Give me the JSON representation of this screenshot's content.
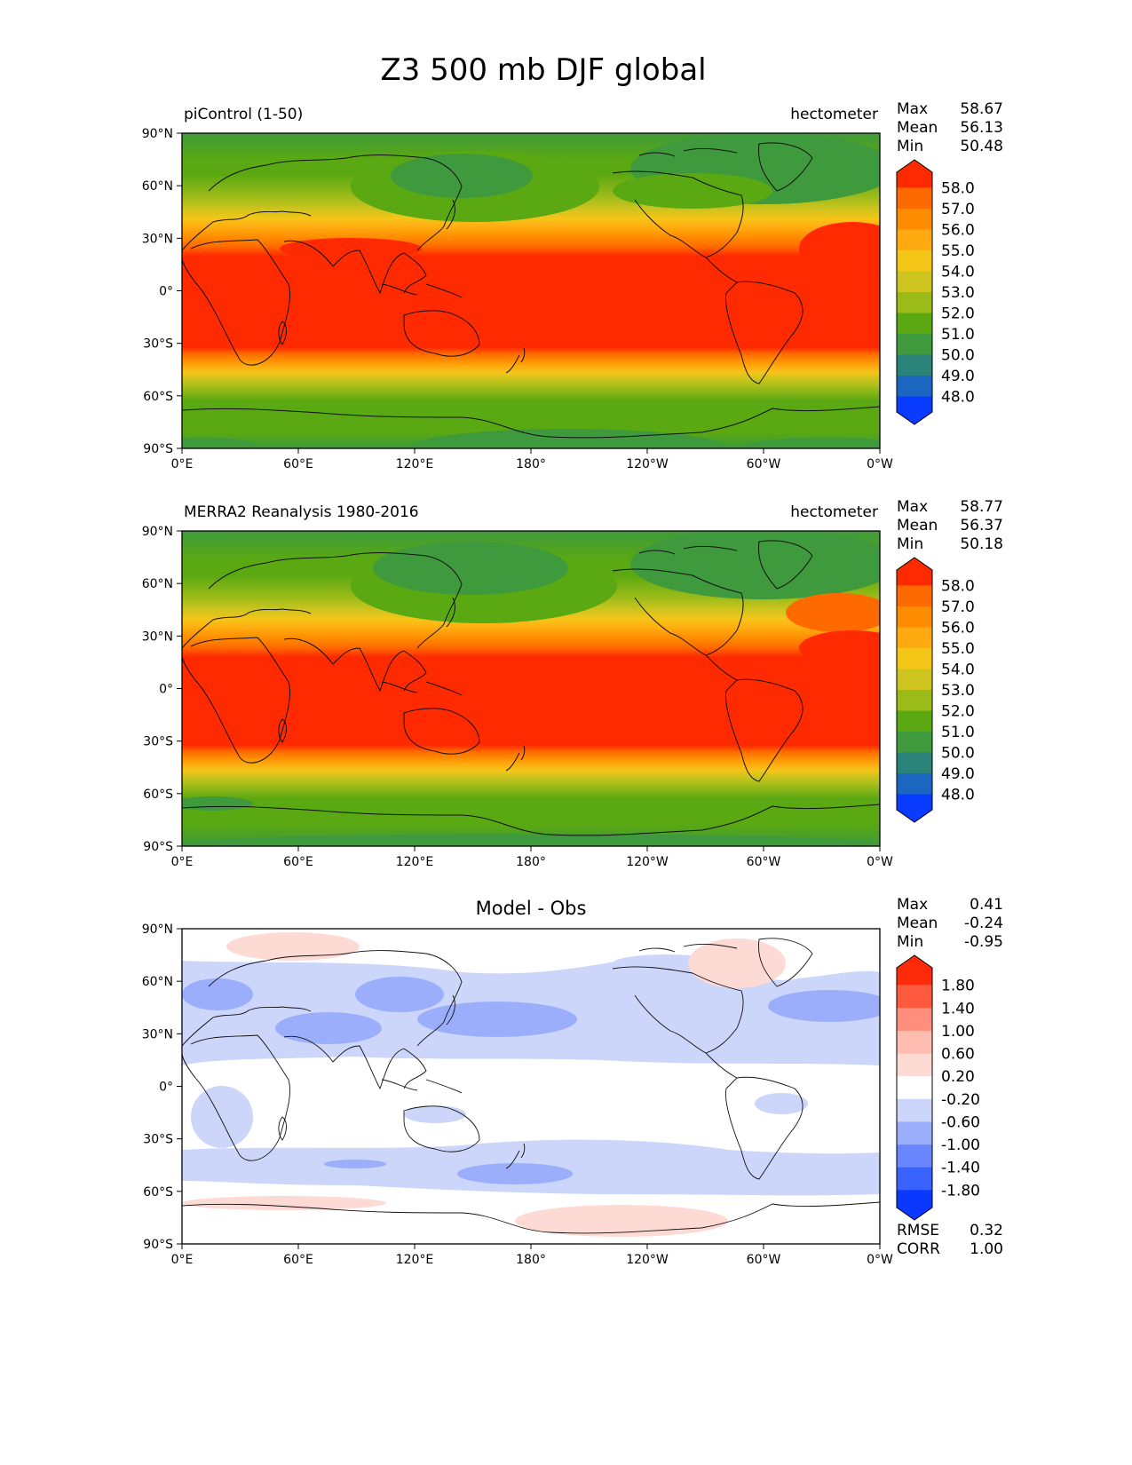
{
  "figure": {
    "title": "Z3 500 mb DJF global"
  },
  "axes": {
    "lat_ticks": [
      "90°N",
      "60°N",
      "30°N",
      "0°",
      "30°S",
      "60°S",
      "90°S"
    ],
    "lon_ticks": [
      "0°E",
      "60°E",
      "120°E",
      "180°",
      "120°W",
      "60°W",
      "0°W"
    ]
  },
  "panels": [
    {
      "id": "picontrol",
      "left_title": "piControl (1-50)",
      "center_title": "",
      "units": "hectometer",
      "stats": [
        {
          "label": "Max",
          "value": "58.67"
        },
        {
          "label": "Mean",
          "value": "56.13"
        },
        {
          "label": "Min",
          "value": "50.48"
        }
      ],
      "colorbar": {
        "levels": [
          "58.0",
          "57.0",
          "56.0",
          "55.0",
          "54.0",
          "53.0",
          "52.0",
          "51.0",
          "50.0",
          "49.0",
          "48.0"
        ],
        "colors": [
          "#ff2a00",
          "#ff6a00",
          "#ff8c00",
          "#ffaa10",
          "#f5c518",
          "#cec41e",
          "#9bbb18",
          "#5aa812",
          "#3e9a3c",
          "#2a8278",
          "#1a66c0",
          "#0a3cff"
        ]
      },
      "extras": []
    },
    {
      "id": "merra2",
      "left_title": "MERRA2 Reanalysis 1980-2016",
      "center_title": "",
      "units": "hectometer",
      "stats": [
        {
          "label": "Max",
          "value": "58.77"
        },
        {
          "label": "Mean",
          "value": "56.37"
        },
        {
          "label": "Min",
          "value": "50.18"
        }
      ],
      "colorbar": {
        "levels": [
          "58.0",
          "57.0",
          "56.0",
          "55.0",
          "54.0",
          "53.0",
          "52.0",
          "51.0",
          "50.0",
          "49.0",
          "48.0"
        ],
        "colors": [
          "#ff2a00",
          "#ff6a00",
          "#ff8c00",
          "#ffaa10",
          "#f5c518",
          "#cec41e",
          "#9bbb18",
          "#5aa812",
          "#3e9a3c",
          "#2a8278",
          "#1a66c0",
          "#0a3cff"
        ]
      },
      "extras": []
    },
    {
      "id": "diff",
      "left_title": "",
      "center_title": "Model - Obs",
      "units": "",
      "stats": [
        {
          "label": "Max",
          "value": "0.41"
        },
        {
          "label": "Mean",
          "value": "-0.24"
        },
        {
          "label": "Min",
          "value": "-0.95"
        }
      ],
      "colorbar": {
        "levels": [
          "1.80",
          "1.40",
          "1.00",
          "0.60",
          "0.20",
          "-0.20",
          "-0.60",
          "-1.00",
          "-1.40",
          "-1.80"
        ],
        "colors": [
          "#ff2a0a",
          "#ff5a40",
          "#ff8e7c",
          "#ffbcb0",
          "#fedad4",
          "#ffffff",
          "#ccd6fb",
          "#9aaefb",
          "#6a86ff",
          "#3a62ff",
          "#0a38ff"
        ]
      },
      "extras": [
        {
          "label": "RMSE",
          "value": "0.32"
        },
        {
          "label": "CORR",
          "value": "1.00"
        }
      ]
    }
  ]
}
